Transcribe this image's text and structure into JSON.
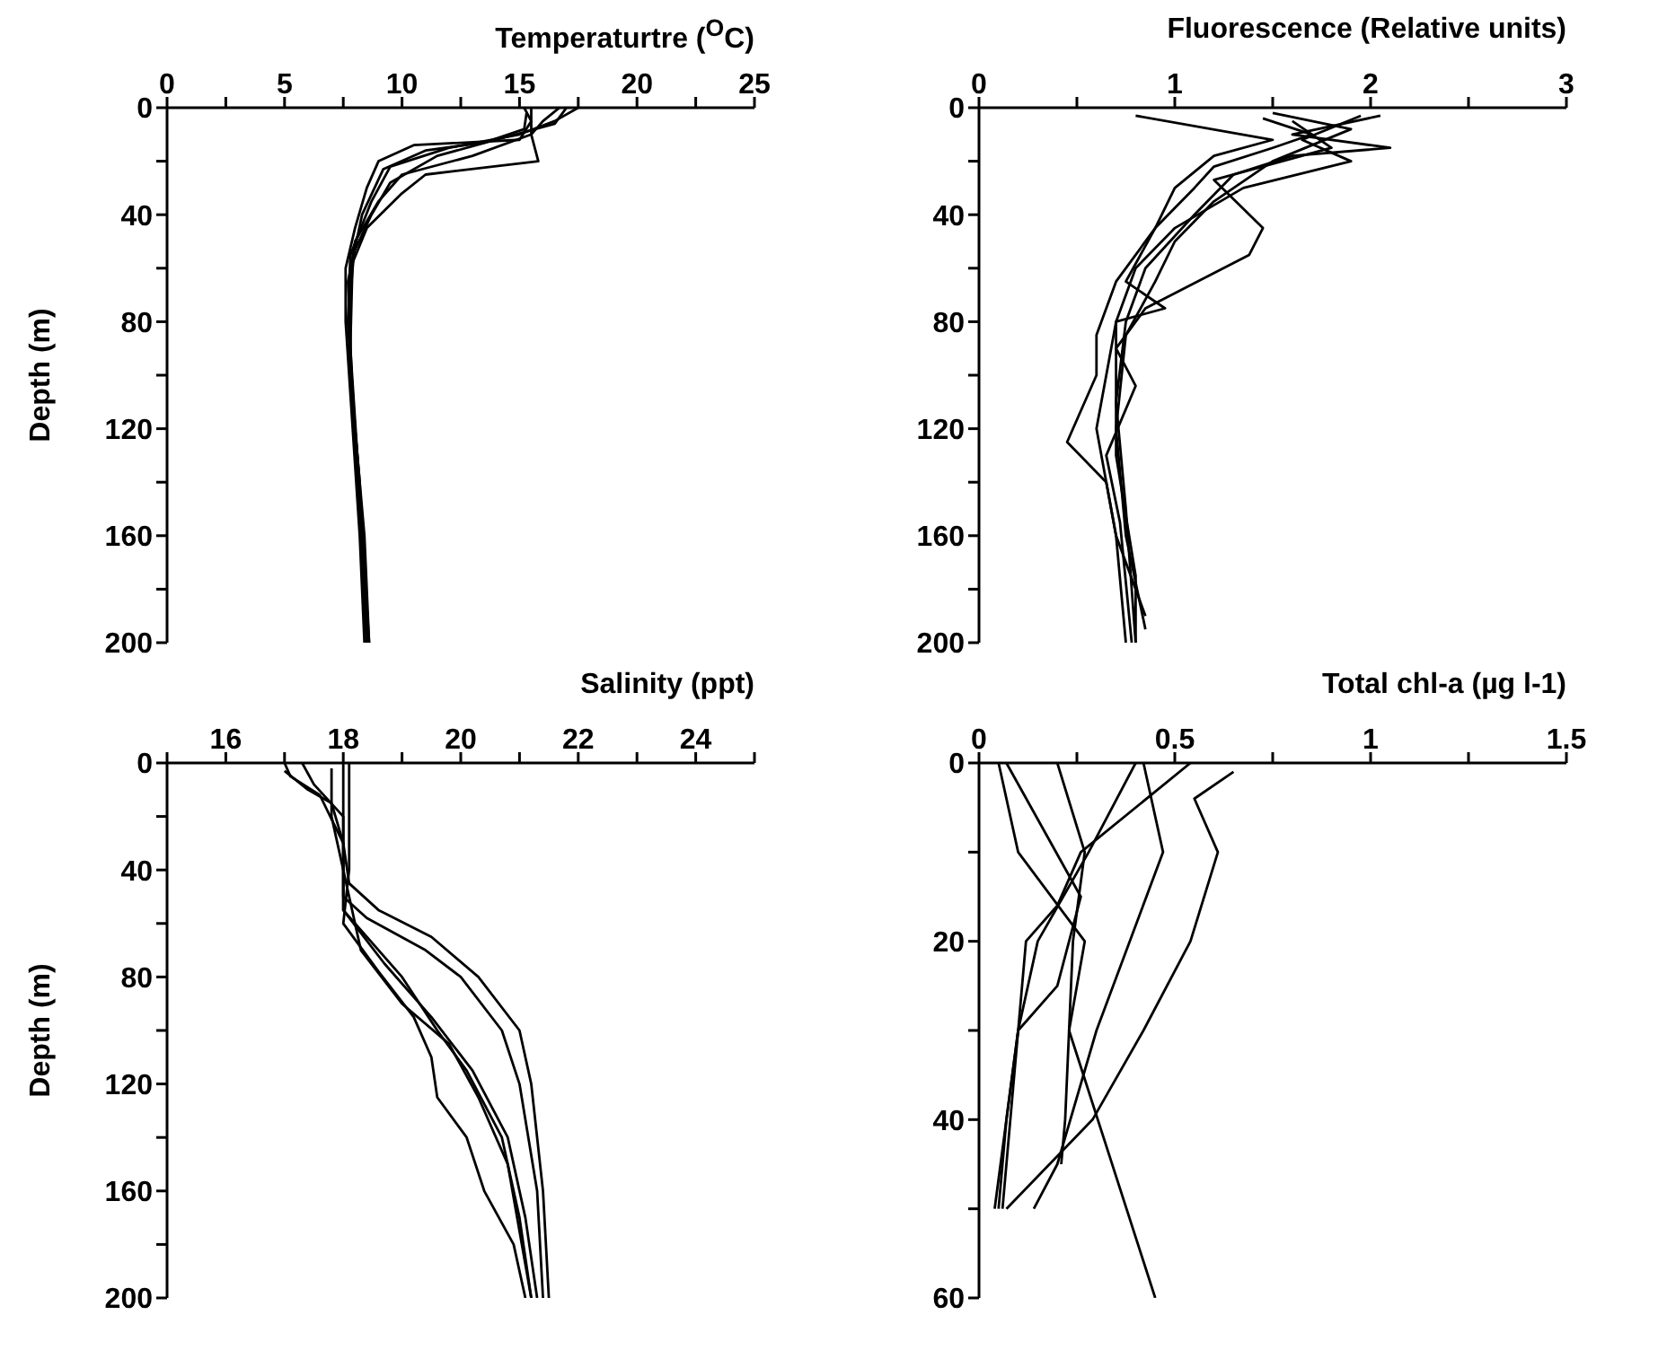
{
  "chart_data": [
    {
      "type": "line",
      "xlabel": "Temperaturtre ($^{O}$C)",
      "ylabel": "Depth (m)",
      "xlim": [
        0,
        25
      ],
      "xticks": [
        0,
        {
          "value": 2.5,
          "label": null
        },
        5,
        {
          "value": 7.5,
          "label": null
        },
        10,
        {
          "value": 12.5,
          "label": null
        },
        15,
        {
          "value": 17.5,
          "label": null
        },
        20,
        {
          "value": 22.5,
          "label": null
        },
        25
      ],
      "ylim": [
        200,
        0
      ],
      "yticks": [
        0,
        {
          "value": 20,
          "label": null
        },
        40,
        {
          "value": 60,
          "label": null
        },
        80,
        {
          "value": 100,
          "label": null
        },
        120,
        {
          "value": 140,
          "label": null
        },
        160,
        {
          "value": 180,
          "label": null
        },
        200
      ],
      "grid": false,
      "legend": false,
      "marker": "none",
      "line_style": "solid",
      "series": [
        {
          "color": "#000000",
          "x": [
            15.2,
            15.5,
            15,
            10.5,
            9,
            8.5,
            8,
            7.6,
            7.6,
            7.9,
            8.2,
            8.4
          ],
          "values": [
            0,
            5,
            12,
            14,
            20,
            30,
            45,
            60,
            80,
            120,
            160,
            200
          ]
        },
        {
          "color": "#000000",
          "x": [
            17.5,
            16.5,
            15,
            12,
            9.5,
            8.7,
            7.8,
            7.7,
            8,
            8.3,
            8.5
          ],
          "values": [
            0,
            5,
            10,
            15,
            22,
            35,
            55,
            80,
            120,
            160,
            200
          ]
        },
        {
          "color": "#000000",
          "x": [
            16.7,
            16,
            15.5,
            13,
            10,
            9,
            8,
            7.7,
            8,
            8.4,
            8.6
          ],
          "values": [
            0,
            5,
            10,
            18,
            25,
            35,
            50,
            80,
            120,
            160,
            200
          ]
        },
        {
          "color": "#000000",
          "x": [
            15.5,
            15.5,
            15.8,
            11,
            10,
            8.5,
            7.8,
            7.8,
            8.2,
            8.5
          ],
          "values": [
            0,
            10,
            20,
            25,
            32,
            45,
            60,
            100,
            140,
            200
          ]
        },
        {
          "color": "#000000",
          "x": [
            17,
            16.5,
            14,
            11.5,
            9.5,
            8.7,
            7.9,
            7.8,
            8.1,
            8.6
          ],
          "values": [
            0,
            6,
            12,
            18,
            28,
            40,
            55,
            90,
            130,
            200
          ]
        },
        {
          "color": "#000000",
          "x": [
            15.3,
            15.2,
            13.5,
            11,
            9.2,
            8.3,
            7.7,
            7.9,
            8.3,
            8.5
          ],
          "values": [
            2,
            8,
            13,
            16,
            23,
            40,
            65,
            110,
            170,
            200
          ]
        }
      ]
    },
    {
      "type": "line",
      "xlabel": "Fluorescence (Relative units)",
      "xlim": [
        0,
        3
      ],
      "xticks": [
        0,
        {
          "value": 0.5,
          "label": null
        },
        1,
        {
          "value": 1.5,
          "label": null
        },
        2,
        {
          "value": 2.5,
          "label": null
        },
        3
      ],
      "ylim": [
        200,
        0
      ],
      "yticks": [
        0,
        {
          "value": 20,
          "label": null
        },
        40,
        {
          "value": 60,
          "label": null
        },
        80,
        {
          "value": 100,
          "label": null
        },
        120,
        {
          "value": 140,
          "label": null
        },
        160,
        {
          "value": 180,
          "label": null
        },
        200
      ],
      "grid": false,
      "legend": false,
      "marker": "none",
      "line_style": "solid",
      "series": [
        {
          "color": "#000000",
          "x": [
            0.8,
            1.5,
            1.2,
            1,
            0.9,
            0.7,
            0.6,
            0.6,
            0.45,
            0.65,
            0.7,
            0.75
          ],
          "values": [
            3,
            12,
            18,
            30,
            45,
            65,
            85,
            100,
            125,
            140,
            160,
            200
          ]
        },
        {
          "color": "#000000",
          "x": [
            2.05,
            1.6,
            2.1,
            1.6,
            1.3,
            1.1,
            0.85,
            0.75,
            0.7,
            0.75,
            0.8
          ],
          "values": [
            3,
            10,
            15,
            18,
            25,
            40,
            60,
            80,
            110,
            150,
            200
          ]
        },
        {
          "color": "#000000",
          "x": [
            1.5,
            1.9,
            1.5,
            1.2,
            1,
            0.9,
            0.75,
            0.7,
            0.75,
            0.85
          ],
          "values": [
            2,
            8,
            20,
            35,
            50,
            65,
            85,
            120,
            160,
            195
          ]
        },
        {
          "color": "#000000",
          "x": [
            1.6,
            1.8,
            1.2,
            1.45,
            1.38,
            0.85,
            0.7,
            0.8,
            0.65,
            0.72,
            0.78
          ],
          "values": [
            5,
            15,
            27,
            45,
            55,
            75,
            90,
            104,
            130,
            155,
            200
          ]
        },
        {
          "color": "#000000",
          "x": [
            1.95,
            1.65,
            1.9,
            1.35,
            1,
            0.8,
            0.7,
            0.6,
            0.7,
            0.85
          ],
          "values": [
            3,
            12,
            20,
            30,
            45,
            60,
            80,
            120,
            160,
            190
          ]
        },
        {
          "color": "#000000",
          "x": [
            1.45,
            1.7,
            1.5,
            1.2,
            1.1,
            0.9,
            0.75,
            0.95,
            0.7,
            0.7,
            0.8,
            0.8
          ],
          "values": [
            4,
            10,
            15,
            22,
            30,
            45,
            65,
            75,
            80,
            130,
            175,
            200
          ]
        }
      ]
    },
    {
      "type": "line",
      "xlabel": "Salinity (ppt)",
      "ylabel": "Depth (m)",
      "xlim": [
        15,
        25
      ],
      "xticks": [
        {
          "value": 15,
          "label": null
        },
        16,
        {
          "value": 17,
          "label": null
        },
        18,
        {
          "value": 19,
          "label": null
        },
        20,
        {
          "value": 21,
          "label": null
        },
        22,
        {
          "value": 23,
          "label": null
        },
        24,
        {
          "value": 25,
          "label": null
        }
      ],
      "ylim": [
        200,
        0
      ],
      "yticks": [
        0,
        {
          "value": 20,
          "label": null
        },
        40,
        {
          "value": 60,
          "label": null
        },
        80,
        {
          "value": 100,
          "label": null
        },
        120,
        {
          "value": 140,
          "label": null
        },
        160,
        {
          "value": 180,
          "label": null
        },
        200
      ],
      "grid": false,
      "legend": false,
      "marker": "none",
      "line_style": "solid",
      "series": [
        {
          "color": "#000000",
          "x": [
            17,
            17.1,
            17.6,
            18,
            18.1,
            18.6,
            19.5,
            20.3,
            21,
            21.2,
            21.4,
            21.5
          ],
          "values": [
            0,
            5,
            12,
            30,
            45,
            55,
            65,
            80,
            100,
            120,
            160,
            200
          ]
        },
        {
          "color": "#000000",
          "x": [
            18,
            18,
            18,
            18.4,
            19.4,
            20,
            20.7,
            21,
            21.3,
            21.4
          ],
          "values": [
            0,
            20,
            50,
            58,
            70,
            80,
            100,
            120,
            160,
            200
          ]
        },
        {
          "color": "#000000",
          "x": [
            17.3,
            17.5,
            18,
            18,
            18.4,
            19,
            19.6,
            20.1,
            20.7,
            21,
            21.2
          ],
          "values": [
            0,
            8,
            20,
            55,
            65,
            80,
            100,
            115,
            140,
            170,
            200
          ]
        },
        {
          "color": "#000000",
          "x": [
            17,
            17.4,
            17.8,
            18,
            18,
            18.7,
            19.5,
            20.2,
            20.8,
            21.1,
            21.3
          ],
          "values": [
            3,
            10,
            15,
            30,
            55,
            75,
            95,
            115,
            140,
            170,
            200
          ]
        },
        {
          "color": "#000000",
          "x": [
            18.1,
            18.1,
            18,
            18.6,
            19.2,
            19.5,
            19.6,
            20.1,
            20.4,
            20.9,
            21.1
          ],
          "values": [
            0,
            40,
            60,
            78,
            95,
            110,
            125,
            140,
            160,
            180,
            200
          ]
        },
        {
          "color": "#000000",
          "x": [
            17.8,
            17.8,
            18.1,
            18.3,
            19,
            19.8,
            20.3,
            20.8,
            21,
            21.2
          ],
          "values": [
            2,
            20,
            50,
            70,
            90,
            105,
            125,
            150,
            175,
            200
          ]
        }
      ]
    },
    {
      "type": "line",
      "xlabel": "Total chl-a (µg l-1)",
      "xlim": [
        0,
        1.5
      ],
      "xticks": [
        0,
        {
          "value": 0.25,
          "label": null
        },
        0.5,
        {
          "value": 0.75,
          "label": null
        },
        1,
        {
          "value": 1.25,
          "label": null
        },
        1.5
      ],
      "ylim": [
        60,
        0
      ],
      "yticks": [
        0,
        {
          "value": 10,
          "label": null
        },
        20,
        {
          "value": 30,
          "label": null
        },
        40,
        {
          "value": 50,
          "label": null
        },
        60
      ],
      "grid": false,
      "legend": false,
      "marker": "none",
      "line_style": "solid",
      "series": [
        {
          "color": "#000000",
          "x": [
            0.65,
            0.55,
            0.61,
            0.54,
            0.42,
            0.29,
            0.07
          ],
          "values": [
            1,
            4,
            10,
            20,
            30,
            40,
            50
          ]
        },
        {
          "color": "#000000",
          "x": [
            0.54,
            0.26,
            0.2,
            0.12,
            0.1,
            0.07,
            0.04
          ],
          "values": [
            0,
            10,
            16,
            20,
            30,
            40,
            50
          ]
        },
        {
          "color": "#000000",
          "x": [
            0.42,
            0.47,
            0.3,
            0.2,
            0.14
          ],
          "values": [
            0,
            10,
            30,
            45,
            50
          ]
        },
        {
          "color": "#000000",
          "x": [
            0.4,
            0.28,
            0.15,
            0.1,
            0.07,
            0.05
          ],
          "values": [
            0,
            10,
            20,
            30,
            40,
            50
          ]
        },
        {
          "color": "#000000",
          "x": [
            0.2,
            0.27,
            0.24,
            0.22,
            0.21
          ],
          "values": [
            0,
            10,
            20,
            40,
            45
          ]
        },
        {
          "color": "#000000",
          "x": [
            0.07,
            0.26,
            0.2,
            0.1,
            0.08,
            0.06
          ],
          "values": [
            0,
            15,
            25,
            30,
            40,
            50
          ]
        },
        {
          "color": "#000000",
          "x": [
            0.05,
            0.1,
            0.27,
            0.23,
            0.45
          ],
          "values": [
            0,
            10,
            20,
            30,
            60
          ]
        }
      ]
    }
  ]
}
